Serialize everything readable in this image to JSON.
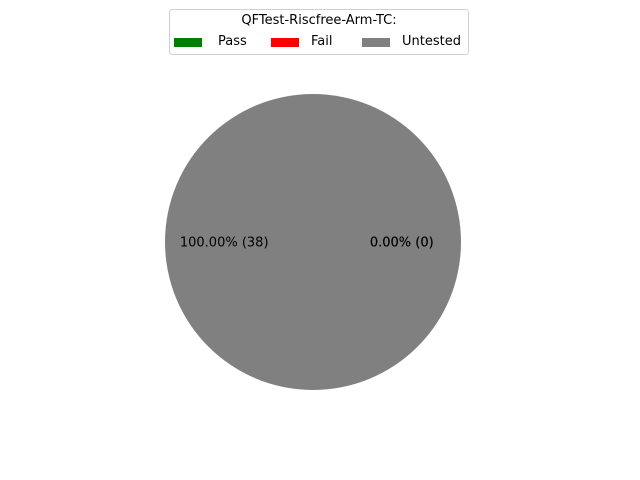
{
  "chart_data": {
    "type": "pie",
    "title": "",
    "legend": {
      "title": "QFTest-Riscfree-Arm-TC:",
      "placement": "top-center",
      "columns": 3
    },
    "slices": [
      {
        "name": "Pass",
        "value": 0,
        "percent_label": "0.00%  (0)",
        "color": "#008000"
      },
      {
        "name": "Fail",
        "value": 0,
        "percent_label": "0.00%  (0)",
        "color": "#ff0000"
      },
      {
        "name": "Untested",
        "value": 38,
        "percent_label": "100.00%  (38)",
        "color": "#808080"
      }
    ]
  }
}
